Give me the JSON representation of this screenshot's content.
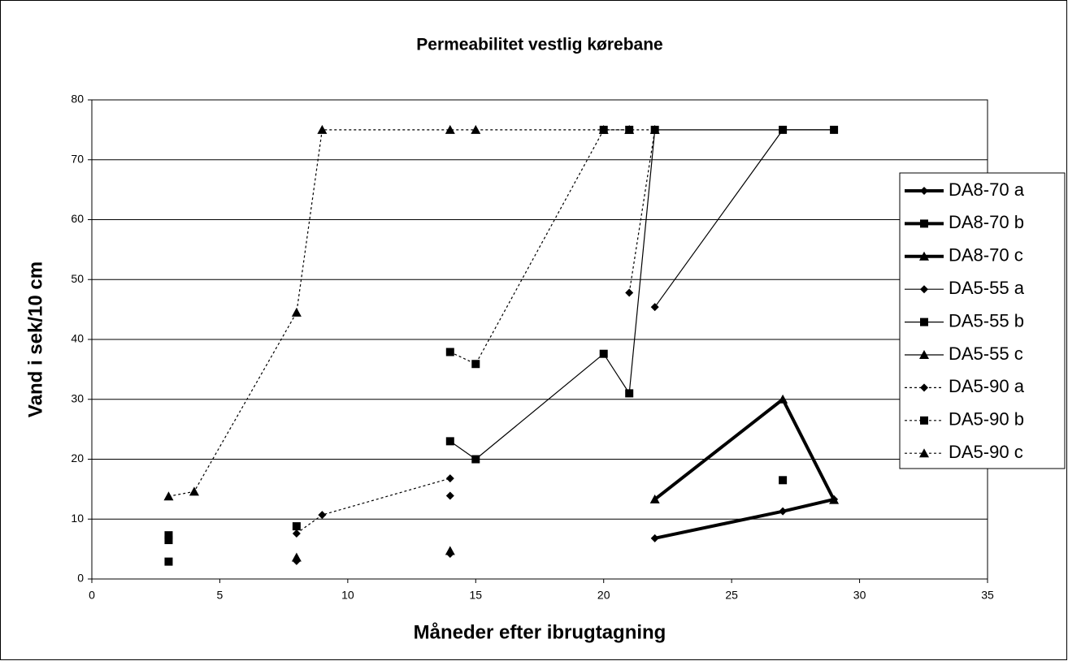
{
  "chart_data": {
    "type": "line",
    "title": "Permeabilitet vestlig kørebane",
    "x_label": "Måneder efter ibrugtagning",
    "y_label": "Vand i sek/10 cm",
    "xlim": [
      0,
      35
    ],
    "xticks": [
      0,
      5,
      10,
      15,
      20,
      25,
      30,
      35
    ],
    "ylim": [
      0,
      80
    ],
    "yticks": [
      0,
      10,
      20,
      30,
      40,
      50,
      60,
      70,
      80
    ],
    "grid": true,
    "legend": "right",
    "series": [
      {
        "name": "DA8-70 a",
        "color": "#000000",
        "marker": "diamond",
        "line": "thick",
        "x": [
          8,
          9,
          14,
          20,
          22,
          27,
          29
        ],
        "values": [
          3,
          null,
          4.2,
          null,
          6.8,
          11.3,
          13.3
        ]
      },
      {
        "name": "DA8-70 b",
        "color": "#000000",
        "marker": "square",
        "line": "thick",
        "x": [
          3,
          4,
          27
        ],
        "values": [
          2.9,
          null,
          16.5
        ]
      },
      {
        "name": "DA8-70 c",
        "color": "#000000",
        "marker": "triangle",
        "line": "thick",
        "x": [
          8,
          9,
          22,
          27,
          29
        ],
        "values": [
          3.6,
          null,
          13.3,
          30,
          13.2
        ]
      },
      {
        "name": "DA5-55 a",
        "color": "#000000",
        "marker": "diamond",
        "line": "thin",
        "x": [
          14,
          15,
          22,
          27,
          29
        ],
        "values": [
          13.9,
          null,
          45.4,
          75,
          75
        ]
      },
      {
        "name": "DA5-55 b",
        "color": "#000000",
        "marker": "square",
        "line": "thin",
        "x": [
          3,
          4,
          8,
          9,
          14,
          15,
          20,
          21,
          22,
          27,
          29
        ],
        "values": [
          6.5,
          null,
          8.8,
          null,
          23,
          20,
          37.6,
          31,
          75,
          75,
          75
        ]
      },
      {
        "name": "DA5-55 c",
        "color": "#000000",
        "marker": "triangle",
        "line": "thin",
        "x": [
          14
        ],
        "values": [
          4.7
        ]
      },
      {
        "name": "DA5-90 a",
        "color": "#000000",
        "marker": "diamond",
        "line": "dotted",
        "x": [
          8,
          9,
          14,
          15,
          21,
          22
        ],
        "values": [
          7.6,
          10.7,
          16.8,
          null,
          47.8,
          75
        ]
      },
      {
        "name": "DA5-90 b",
        "color": "#000000",
        "marker": "square",
        "line": "dotted",
        "x": [
          3,
          4,
          14,
          15,
          20,
          21
        ],
        "values": [
          7.3,
          null,
          37.9,
          35.9,
          75,
          75
        ]
      },
      {
        "name": "DA5-90 c",
        "color": "#000000",
        "marker": "triangle",
        "line": "dotted",
        "x": [
          3,
          4,
          8,
          9,
          14,
          15,
          20,
          21,
          22
        ],
        "values": [
          13.8,
          14.6,
          44.5,
          75,
          75,
          75,
          75,
          75,
          75
        ]
      }
    ]
  }
}
